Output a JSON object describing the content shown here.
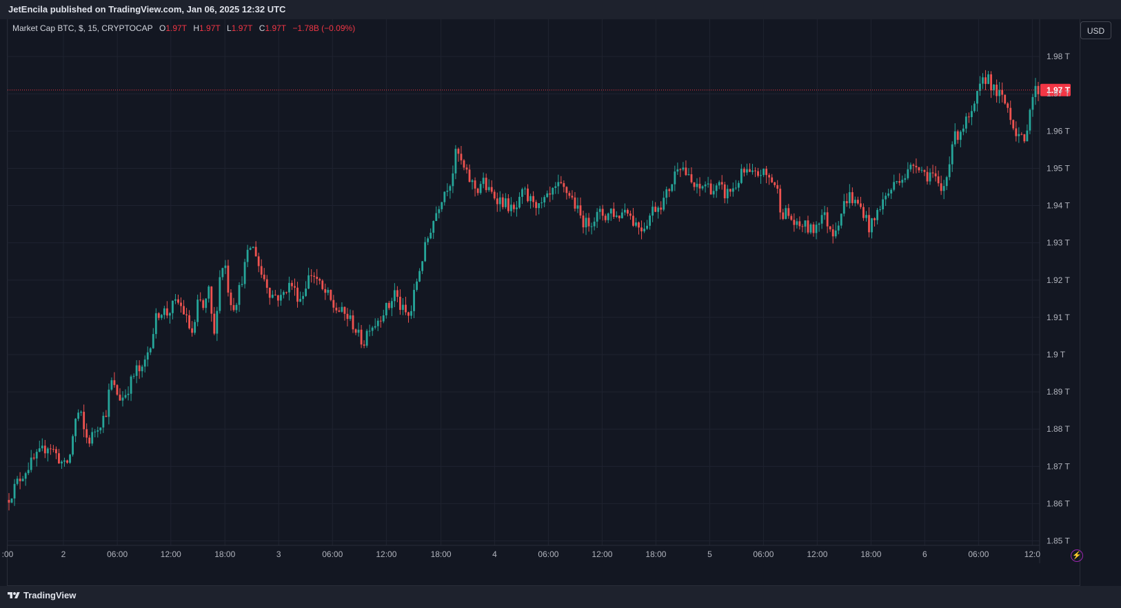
{
  "publisher": {
    "text": "JetEncila published on TradingView.com, Jan 06, 2025 12:32 UTC"
  },
  "legend": {
    "symbol": "Market Cap BTC, $, 15, CRYPTOCAP",
    "o_label": "O",
    "o_value": "1.97T",
    "h_label": "H",
    "h_value": "1.97T",
    "l_label": "L",
    "l_value": "1.97T",
    "c_label": "C",
    "c_value": "1.97T",
    "change": "−1.78B (−0.09%)"
  },
  "currency_button": {
    "label": "USD"
  },
  "brand": {
    "label": "TradingView"
  },
  "colors": {
    "background": "#131722",
    "grid": "#1f2330",
    "up": "#26a69a",
    "down": "#ef5350",
    "price_line": "#f23645",
    "axis_text": "#b2b5be"
  },
  "chart_data": {
    "type": "candlestick",
    "title": "",
    "xlabel": "",
    "ylabel": "",
    "ylim": [
      1.844,
      1.99
    ],
    "y_unit": "T",
    "yticks": [
      1.85,
      1.86,
      1.87,
      1.88,
      1.89,
      1.9,
      1.91,
      1.92,
      1.93,
      1.94,
      1.95,
      1.96,
      1.97,
      1.98
    ],
    "ytick_labels": [
      "1.85 T",
      "1.86 T",
      "1.87 T",
      "1.88 T",
      "1.89 T",
      "1.9 T",
      "1.91 T",
      "1.92 T",
      "1.93 T",
      "1.94 T",
      "1.95 T",
      "1.96 T",
      "1.97 T",
      "1.98 T"
    ],
    "xticks": [
      {
        "label": ":00",
        "pos": 0.0
      },
      {
        "label": "2",
        "pos": 0.0541
      },
      {
        "label": "06:00",
        "pos": 0.1063
      },
      {
        "label": "12:00",
        "pos": 0.1582
      },
      {
        "label": "18:00",
        "pos": 0.2106
      },
      {
        "label": "3",
        "pos": 0.2627
      },
      {
        "label": "06:00",
        "pos": 0.3148
      },
      {
        "label": "12:00",
        "pos": 0.367
      },
      {
        "label": "18:00",
        "pos": 0.4199
      },
      {
        "label": "4",
        "pos": 0.4719
      },
      {
        "label": "06:00",
        "pos": 0.524
      },
      {
        "label": "12:00",
        "pos": 0.5761
      },
      {
        "label": "18:00",
        "pos": 0.6282
      },
      {
        "label": "5",
        "pos": 0.6803
      },
      {
        "label": "06:00",
        "pos": 0.7324
      },
      {
        "label": "12:00",
        "pos": 0.7845
      },
      {
        "label": "18:00",
        "pos": 0.8366
      },
      {
        "label": "6",
        "pos": 0.8887
      },
      {
        "label": "06:00",
        "pos": 0.9408
      },
      {
        "label": "12:0",
        "pos": 0.9929
      }
    ],
    "close_path": [
      [
        0.0,
        1.861
      ],
      [
        0.01,
        1.866
      ],
      [
        0.02,
        1.87
      ],
      [
        0.03,
        1.873
      ],
      [
        0.04,
        1.876
      ],
      [
        0.05,
        1.872
      ],
      [
        0.055,
        1.87
      ],
      [
        0.06,
        1.872
      ],
      [
        0.065,
        1.882
      ],
      [
        0.07,
        1.885
      ],
      [
        0.075,
        1.878
      ],
      [
        0.08,
        1.877
      ],
      [
        0.085,
        1.88
      ],
      [
        0.09,
        1.882
      ],
      [
        0.095,
        1.884
      ],
      [
        0.1,
        1.893
      ],
      [
        0.105,
        1.89
      ],
      [
        0.11,
        1.888
      ],
      [
        0.115,
        1.89
      ],
      [
        0.12,
        1.893
      ],
      [
        0.125,
        1.896
      ],
      [
        0.13,
        1.895
      ],
      [
        0.135,
        1.9
      ],
      [
        0.14,
        1.905
      ],
      [
        0.145,
        1.911
      ],
      [
        0.15,
        1.912
      ],
      [
        0.155,
        1.911
      ],
      [
        0.16,
        1.913
      ],
      [
        0.165,
        1.914
      ],
      [
        0.17,
        1.912
      ],
      [
        0.175,
        1.908
      ],
      [
        0.18,
        1.905
      ],
      [
        0.185,
        1.915
      ],
      [
        0.19,
        1.912
      ],
      [
        0.195,
        1.917
      ],
      [
        0.2,
        1.904
      ],
      [
        0.205,
        1.92
      ],
      [
        0.21,
        1.926
      ],
      [
        0.215,
        1.915
      ],
      [
        0.22,
        1.913
      ],
      [
        0.225,
        1.918
      ],
      [
        0.23,
        1.924
      ],
      [
        0.235,
        1.929
      ],
      [
        0.24,
        1.928
      ],
      [
        0.245,
        1.922
      ],
      [
        0.25,
        1.92
      ],
      [
        0.255,
        1.916
      ],
      [
        0.26,
        1.916
      ],
      [
        0.265,
        1.915
      ],
      [
        0.27,
        1.918
      ],
      [
        0.275,
        1.919
      ],
      [
        0.28,
        1.916
      ],
      [
        0.285,
        1.915
      ],
      [
        0.29,
        1.92
      ],
      [
        0.295,
        1.922
      ],
      [
        0.3,
        1.92
      ],
      [
        0.305,
        1.917
      ],
      [
        0.31,
        1.916
      ],
      [
        0.315,
        1.913
      ],
      [
        0.32,
        1.912
      ],
      [
        0.325,
        1.911
      ],
      [
        0.33,
        1.91
      ],
      [
        0.335,
        1.908
      ],
      [
        0.34,
        1.905
      ],
      [
        0.345,
        1.903
      ],
      [
        0.35,
        1.908
      ],
      [
        0.355,
        1.908
      ],
      [
        0.36,
        1.91
      ],
      [
        0.365,
        1.912
      ],
      [
        0.37,
        1.913
      ],
      [
        0.375,
        1.917
      ],
      [
        0.38,
        1.913
      ],
      [
        0.385,
        1.911
      ],
      [
        0.39,
        1.91
      ],
      [
        0.395,
        1.918
      ],
      [
        0.4,
        1.924
      ],
      [
        0.405,
        1.929
      ],
      [
        0.41,
        1.934
      ],
      [
        0.415,
        1.938
      ],
      [
        0.42,
        1.942
      ],
      [
        0.425,
        1.945
      ],
      [
        0.43,
        1.947
      ],
      [
        0.435,
        1.955
      ],
      [
        0.44,
        1.951
      ],
      [
        0.445,
        1.948
      ],
      [
        0.45,
        1.946
      ],
      [
        0.455,
        1.944
      ],
      [
        0.46,
        1.947
      ],
      [
        0.465,
        1.944
      ],
      [
        0.47,
        1.943
      ],
      [
        0.475,
        1.942
      ],
      [
        0.48,
        1.941
      ],
      [
        0.485,
        1.94
      ],
      [
        0.49,
        1.938
      ],
      [
        0.495,
        1.94
      ],
      [
        0.5,
        1.944
      ],
      [
        0.505,
        1.941
      ],
      [
        0.51,
        1.942
      ],
      [
        0.515,
        1.939
      ],
      [
        0.52,
        1.941
      ],
      [
        0.525,
        1.942
      ],
      [
        0.53,
        1.944
      ],
      [
        0.535,
        1.945
      ],
      [
        0.54,
        1.944
      ],
      [
        0.545,
        1.943
      ],
      [
        0.55,
        1.94
      ],
      [
        0.555,
        1.937
      ],
      [
        0.56,
        1.935
      ],
      [
        0.565,
        1.936
      ],
      [
        0.57,
        1.937
      ],
      [
        0.575,
        1.938
      ],
      [
        0.58,
        1.937
      ],
      [
        0.585,
        1.939
      ],
      [
        0.59,
        1.937
      ],
      [
        0.595,
        1.938
      ],
      [
        0.6,
        1.94
      ],
      [
        0.605,
        1.936
      ],
      [
        0.61,
        1.935
      ],
      [
        0.615,
        1.934
      ],
      [
        0.62,
        1.936
      ],
      [
        0.625,
        1.939
      ],
      [
        0.63,
        1.94
      ],
      [
        0.635,
        1.941
      ],
      [
        0.64,
        1.944
      ],
      [
        0.645,
        1.947
      ],
      [
        0.65,
        1.952
      ],
      [
        0.655,
        1.95
      ],
      [
        0.66,
        1.947
      ],
      [
        0.665,
        1.945
      ],
      [
        0.67,
        1.944
      ],
      [
        0.675,
        1.946
      ],
      [
        0.68,
        1.945
      ],
      [
        0.685,
        1.944
      ],
      [
        0.69,
        1.945
      ],
      [
        0.695,
        1.943
      ],
      [
        0.7,
        1.944
      ],
      [
        0.705,
        1.945
      ],
      [
        0.71,
        1.948
      ],
      [
        0.715,
        1.949
      ],
      [
        0.72,
        1.948
      ],
      [
        0.725,
        1.948
      ],
      [
        0.73,
        1.949
      ],
      [
        0.735,
        1.948
      ],
      [
        0.74,
        1.947
      ],
      [
        0.745,
        1.945
      ],
      [
        0.75,
        1.938
      ],
      [
        0.755,
        1.938
      ],
      [
        0.76,
        1.936
      ],
      [
        0.765,
        1.934
      ],
      [
        0.77,
        1.935
      ],
      [
        0.775,
        1.934
      ],
      [
        0.78,
        1.933
      ],
      [
        0.785,
        1.936
      ],
      [
        0.79,
        1.938
      ],
      [
        0.795,
        1.935
      ],
      [
        0.8,
        1.933
      ],
      [
        0.805,
        1.936
      ],
      [
        0.81,
        1.94
      ],
      [
        0.815,
        1.943
      ],
      [
        0.82,
        1.941
      ],
      [
        0.825,
        1.94
      ],
      [
        0.83,
        1.938
      ],
      [
        0.835,
        1.934
      ],
      [
        0.84,
        1.936
      ],
      [
        0.845,
        1.94
      ],
      [
        0.85,
        1.942
      ],
      [
        0.855,
        1.944
      ],
      [
        0.86,
        1.946
      ],
      [
        0.865,
        1.948
      ],
      [
        0.87,
        1.948
      ],
      [
        0.875,
        1.95
      ],
      [
        0.88,
        1.952
      ],
      [
        0.885,
        1.95
      ],
      [
        0.89,
        1.948
      ],
      [
        0.895,
        1.949
      ],
      [
        0.9,
        1.946
      ],
      [
        0.905,
        1.943
      ],
      [
        0.91,
        1.948
      ],
      [
        0.915,
        1.957
      ],
      [
        0.92,
        1.959
      ],
      [
        0.925,
        1.961
      ],
      [
        0.93,
        1.963
      ],
      [
        0.935,
        1.964
      ],
      [
        0.94,
        1.97
      ],
      [
        0.945,
        1.973
      ],
      [
        0.95,
        1.975
      ],
      [
        0.955,
        1.971
      ],
      [
        0.96,
        1.97
      ],
      [
        0.965,
        1.968
      ],
      [
        0.97,
        1.966
      ],
      [
        0.975,
        1.961
      ],
      [
        0.98,
        1.959
      ],
      [
        0.985,
        1.956
      ],
      [
        0.99,
        1.966
      ],
      [
        0.995,
        1.971
      ],
      [
        1.0,
        1.971
      ]
    ],
    "last_price": 1.971,
    "last_price_label": "1.97 T"
  }
}
